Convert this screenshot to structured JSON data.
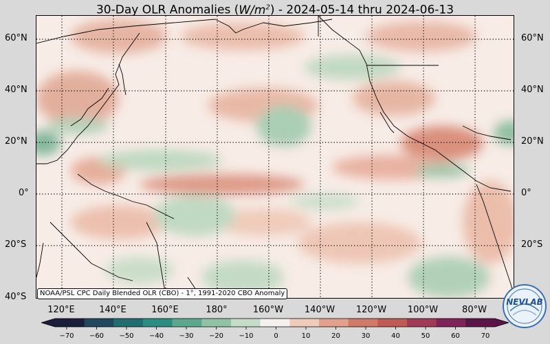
{
  "title": {
    "prefix": "30-Day OLR Anomalies (",
    "unit_base": "W/m",
    "unit_exp": "2",
    "suffix": ") - 2024-05-14 thru 2024-06-13"
  },
  "map": {
    "extent": {
      "lon_min": 110,
      "lon_max": 290,
      "lat_min": -40,
      "lat_max": 68
    },
    "background_color": "#f7ece6"
  },
  "lat_labels": [
    "60°N",
    "40°N",
    "20°N",
    "0°",
    "20°S",
    "40°S"
  ],
  "lon_labels": [
    "120°E",
    "140°E",
    "160°E",
    "180°",
    "160°W",
    "140°W",
    "120°W",
    "100°W",
    "80°W"
  ],
  "credit": "NOAA/PSL CPC Daily Blended OLR (CBO) - 1°, 1991-2020 CBO Anomaly",
  "colorbar": {
    "ticks": [
      "−70",
      "−60",
      "−50",
      "−40",
      "−30",
      "−20",
      "−10",
      "0",
      "10",
      "20",
      "30",
      "40",
      "50",
      "60",
      "70"
    ],
    "colors": [
      "#1c1f3b",
      "#1f4a5e",
      "#1f6f72",
      "#2a8f80",
      "#5aa98f",
      "#8fc3a3",
      "#c5dcc6",
      "#f4f0ee",
      "#f0cbb9",
      "#e3a08a",
      "#d27a66",
      "#bf5a55",
      "#a23a57",
      "#7f2458",
      "#5a1448"
    ]
  },
  "logo": {
    "text": "NEVLAB"
  }
}
